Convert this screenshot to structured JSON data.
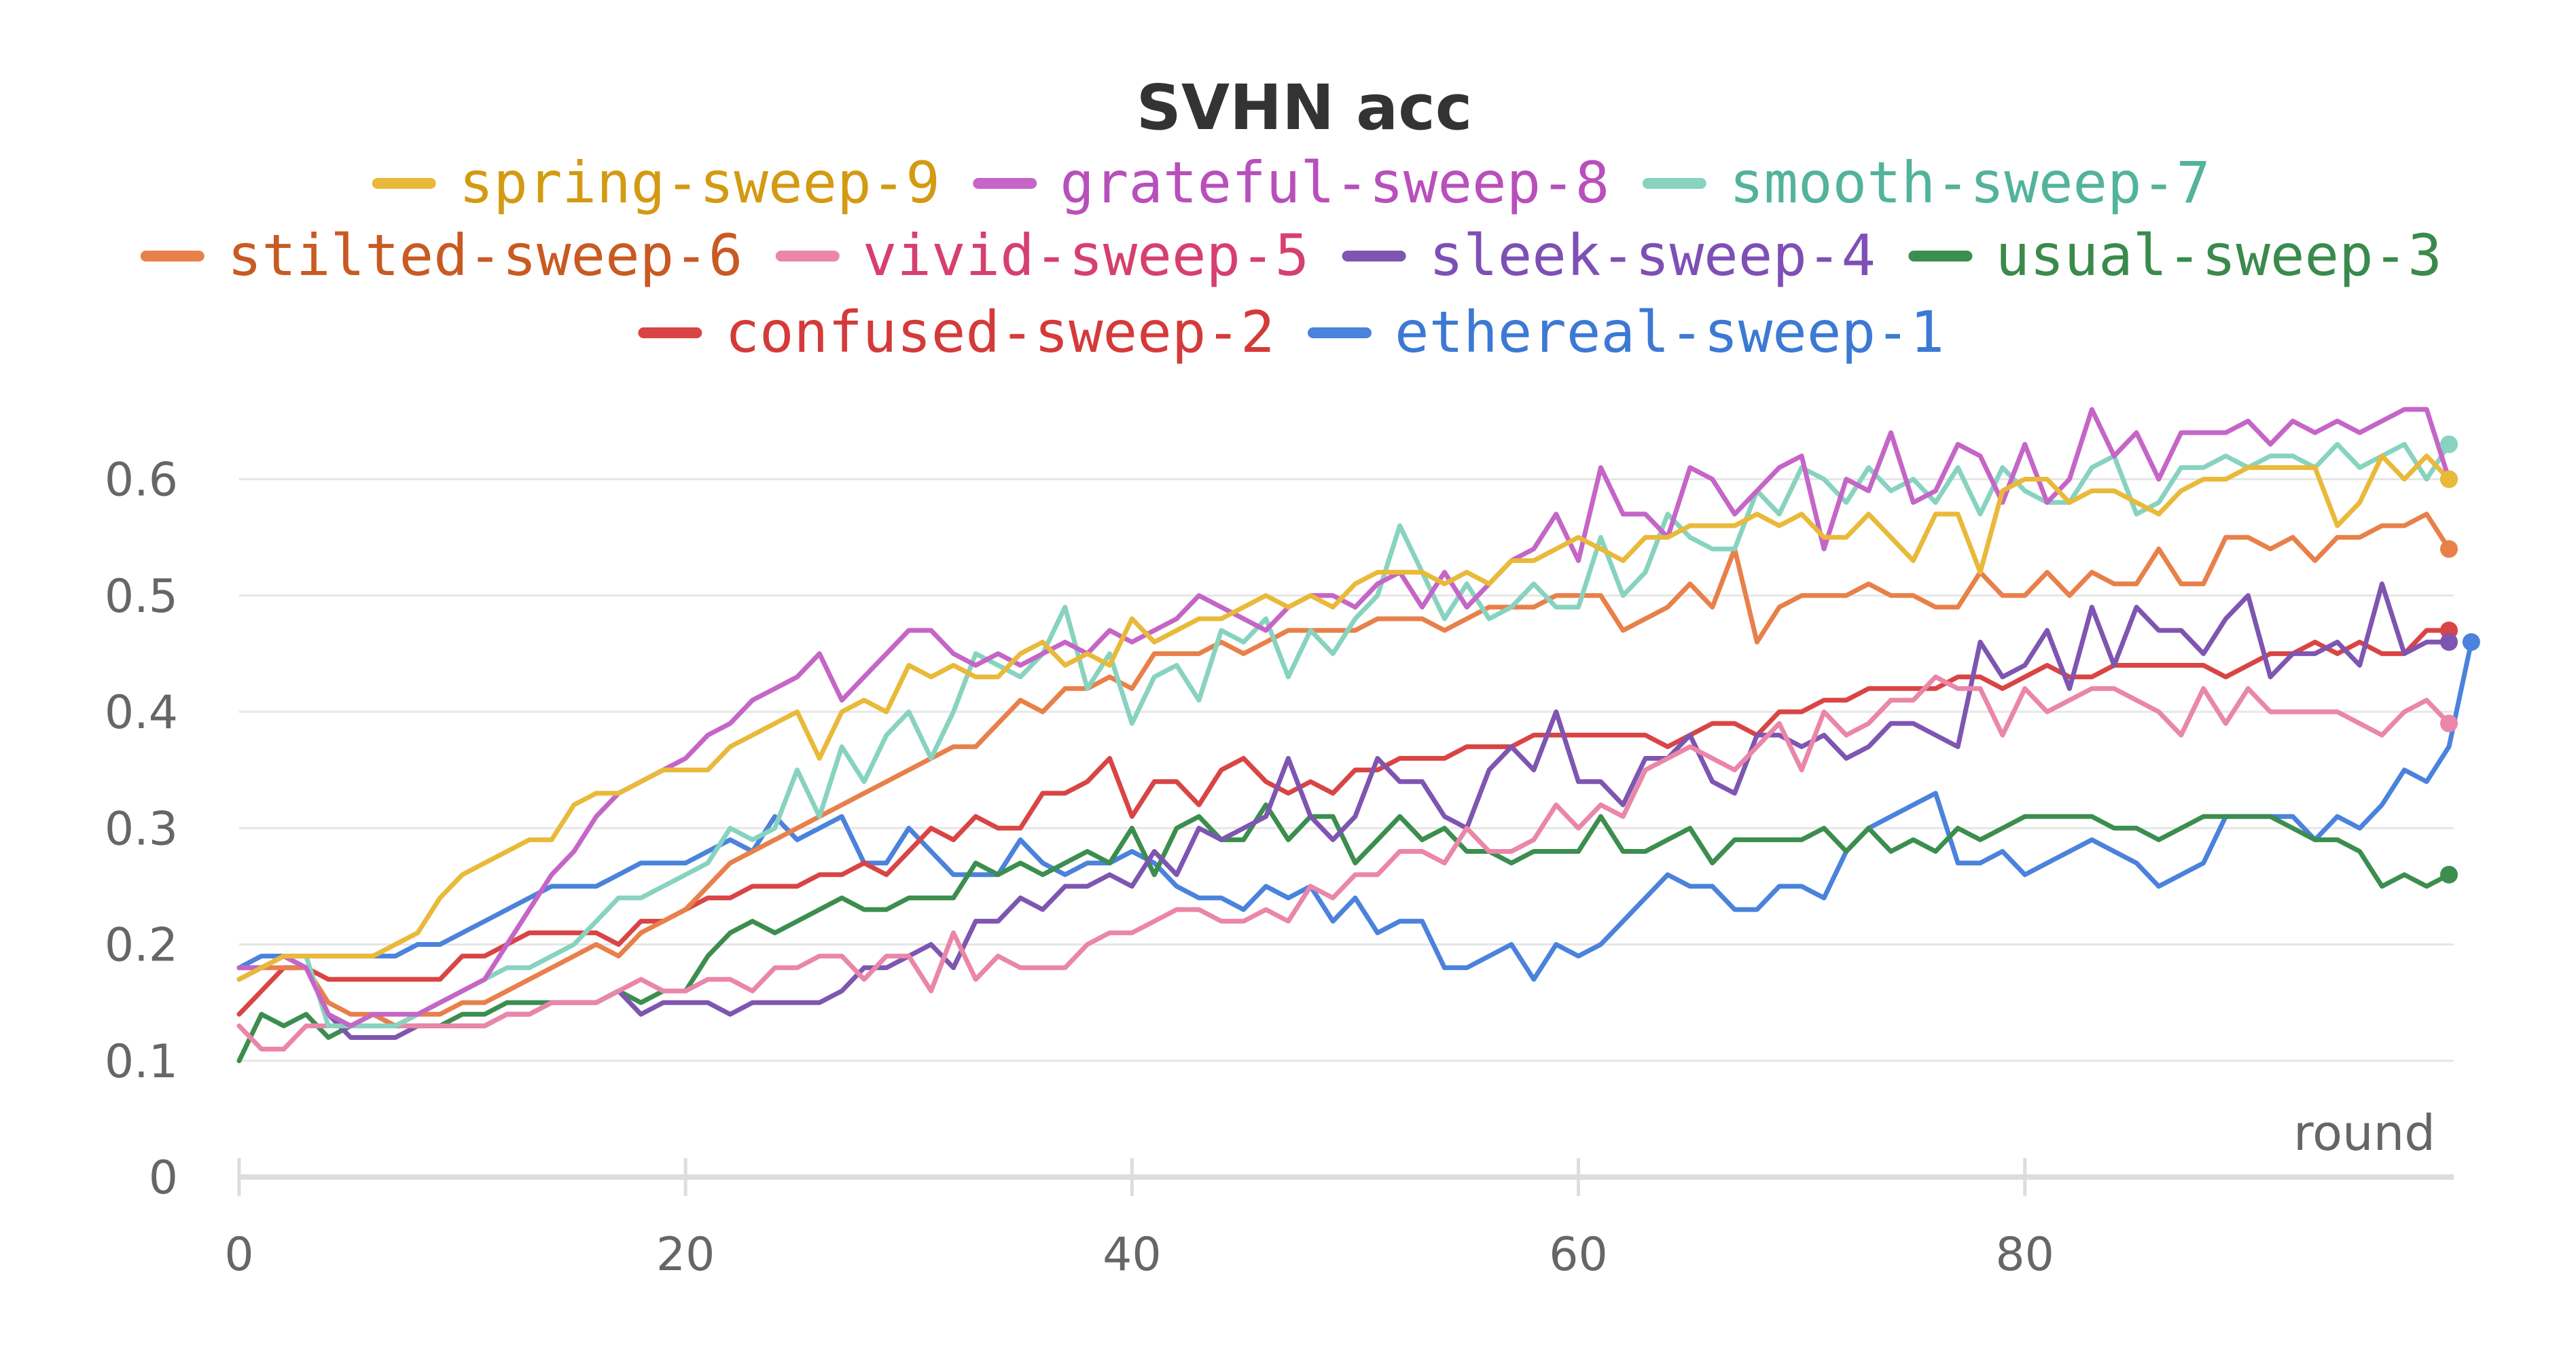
{
  "chart_data": {
    "type": "line",
    "title": "SVHN acc",
    "xlabel": "round",
    "ylabel": "",
    "xlim": [
      0,
      99
    ],
    "ylim": [
      0,
      0.65
    ],
    "xticks": [
      {
        "value": 0,
        "label": "0"
      },
      {
        "value": 20,
        "label": "20"
      },
      {
        "value": 40,
        "label": "40"
      },
      {
        "value": 60,
        "label": "60"
      },
      {
        "value": 80,
        "label": "80"
      }
    ],
    "yticks": [
      {
        "value": 0,
        "label": "0"
      },
      {
        "value": 0.1,
        "label": "0.1"
      },
      {
        "value": 0.2,
        "label": "0.2"
      },
      {
        "value": 0.3,
        "label": "0.3"
      },
      {
        "value": 0.4,
        "label": "0.4"
      },
      {
        "value": 0.5,
        "label": "0.5"
      },
      {
        "value": 0.6,
        "label": "0.6"
      }
    ],
    "grid": true,
    "legend_position": "top",
    "series": [
      {
        "name": "spring-sweep-9",
        "color": "#e9b93a",
        "label_color": "#d39a12",
        "y": [
          0.17,
          0.18,
          0.19,
          0.19,
          0.19,
          0.19,
          0.19,
          0.2,
          0.21,
          0.24,
          0.26,
          0.27,
          0.28,
          0.29,
          0.29,
          0.32,
          0.33,
          0.33,
          0.34,
          0.35,
          0.35,
          0.35,
          0.37,
          0.38,
          0.39,
          0.4,
          0.36,
          0.4,
          0.41,
          0.4,
          0.44,
          0.43,
          0.44,
          0.43,
          0.43,
          0.45,
          0.46,
          0.44,
          0.45,
          0.44,
          0.48,
          0.46,
          0.47,
          0.48,
          0.48,
          0.49,
          0.5,
          0.49,
          0.5,
          0.49,
          0.51,
          0.52,
          0.52,
          0.52,
          0.51,
          0.52,
          0.51,
          0.53,
          0.53,
          0.54,
          0.55,
          0.54,
          0.53,
          0.55,
          0.55,
          0.56,
          0.56,
          0.56,
          0.57,
          0.56,
          0.57,
          0.55,
          0.55,
          0.57,
          0.55,
          0.53,
          0.57,
          0.57,
          0.52,
          0.59,
          0.6,
          0.6,
          0.58,
          0.59,
          0.59,
          0.58,
          0.57,
          0.59,
          0.6,
          0.6,
          0.61,
          0.61,
          0.61,
          0.61,
          0.56,
          0.58,
          0.62,
          0.6,
          0.62,
          0.6
        ]
      },
      {
        "name": "grateful-sweep-8",
        "color": "#c565c7",
        "label_color": "#b84fbb",
        "y": [
          0.18,
          0.18,
          0.19,
          0.18,
          0.14,
          0.13,
          0.14,
          0.14,
          0.14,
          0.15,
          0.16,
          0.17,
          0.2,
          0.23,
          0.26,
          0.28,
          0.31,
          0.33,
          0.34,
          0.35,
          0.36,
          0.38,
          0.39,
          0.41,
          0.42,
          0.43,
          0.45,
          0.41,
          0.43,
          0.45,
          0.47,
          0.47,
          0.45,
          0.44,
          0.45,
          0.44,
          0.45,
          0.46,
          0.45,
          0.47,
          0.46,
          0.47,
          0.48,
          0.5,
          0.49,
          0.48,
          0.47,
          0.49,
          0.5,
          0.5,
          0.49,
          0.51,
          0.52,
          0.49,
          0.52,
          0.49,
          0.51,
          0.53,
          0.54,
          0.57,
          0.53,
          0.61,
          0.57,
          0.57,
          0.55,
          0.61,
          0.6,
          0.57,
          0.59,
          0.61,
          0.62,
          0.54,
          0.6,
          0.59,
          0.64,
          0.58,
          0.59,
          0.63,
          0.62,
          0.58,
          0.63,
          0.58,
          0.6,
          0.66,
          0.62,
          0.64,
          0.6,
          0.64,
          0.64,
          0.64,
          0.65,
          0.63,
          0.65,
          0.64,
          0.65,
          0.64,
          0.65,
          0.66,
          0.66,
          0.6
        ]
      },
      {
        "name": "smooth-sweep-7",
        "color": "#87d3c0",
        "label_color": "#52b39b",
        "y": [
          0.18,
          0.18,
          0.19,
          0.19,
          0.13,
          0.13,
          0.13,
          0.13,
          0.14,
          0.15,
          0.16,
          0.17,
          0.18,
          0.18,
          0.19,
          0.2,
          0.22,
          0.24,
          0.24,
          0.25,
          0.26,
          0.27,
          0.3,
          0.29,
          0.3,
          0.35,
          0.31,
          0.37,
          0.34,
          0.38,
          0.4,
          0.36,
          0.4,
          0.45,
          0.44,
          0.43,
          0.45,
          0.49,
          0.42,
          0.45,
          0.39,
          0.43,
          0.44,
          0.41,
          0.47,
          0.46,
          0.48,
          0.43,
          0.47,
          0.45,
          0.48,
          0.5,
          0.56,
          0.52,
          0.48,
          0.51,
          0.48,
          0.49,
          0.51,
          0.49,
          0.49,
          0.55,
          0.5,
          0.52,
          0.57,
          0.55,
          0.54,
          0.54,
          0.59,
          0.57,
          0.61,
          0.6,
          0.58,
          0.61,
          0.59,
          0.6,
          0.58,
          0.61,
          0.57,
          0.61,
          0.59,
          0.58,
          0.58,
          0.61,
          0.62,
          0.57,
          0.58,
          0.61,
          0.61,
          0.62,
          0.61,
          0.62,
          0.62,
          0.61,
          0.63,
          0.61,
          0.62,
          0.63,
          0.6,
          0.63
        ]
      },
      {
        "name": "stilted-sweep-6",
        "color": "#e8804a",
        "label_color": "#c85a22",
        "y": [
          0.17,
          0.18,
          0.18,
          0.18,
          0.15,
          0.14,
          0.14,
          0.13,
          0.14,
          0.14,
          0.15,
          0.15,
          0.16,
          0.17,
          0.18,
          0.19,
          0.2,
          0.19,
          0.21,
          0.22,
          0.23,
          0.25,
          0.27,
          0.28,
          0.29,
          0.3,
          0.31,
          0.32,
          0.33,
          0.34,
          0.35,
          0.36,
          0.37,
          0.37,
          0.39,
          0.41,
          0.4,
          0.42,
          0.42,
          0.43,
          0.42,
          0.45,
          0.45,
          0.45,
          0.46,
          0.45,
          0.46,
          0.47,
          0.47,
          0.47,
          0.47,
          0.48,
          0.48,
          0.48,
          0.47,
          0.48,
          0.49,
          0.49,
          0.49,
          0.5,
          0.5,
          0.5,
          0.47,
          0.48,
          0.49,
          0.51,
          0.49,
          0.54,
          0.46,
          0.49,
          0.5,
          0.5,
          0.5,
          0.51,
          0.5,
          0.5,
          0.49,
          0.49,
          0.52,
          0.5,
          0.5,
          0.52,
          0.5,
          0.52,
          0.51,
          0.51,
          0.54,
          0.51,
          0.51,
          0.55,
          0.55,
          0.54,
          0.55,
          0.53,
          0.55,
          0.55,
          0.56,
          0.56,
          0.57,
          0.54
        ]
      },
      {
        "name": "vivid-sweep-5",
        "color": "#ea86a8",
        "label_color": "#d6406e",
        "y": [
          0.13,
          0.11,
          0.11,
          0.13,
          0.13,
          0.13,
          0.13,
          0.13,
          0.13,
          0.13,
          0.13,
          0.13,
          0.14,
          0.14,
          0.15,
          0.15,
          0.15,
          0.16,
          0.17,
          0.16,
          0.16,
          0.17,
          0.17,
          0.16,
          0.18,
          0.18,
          0.19,
          0.19,
          0.17,
          0.19,
          0.19,
          0.16,
          0.21,
          0.17,
          0.19,
          0.18,
          0.18,
          0.18,
          0.2,
          0.21,
          0.21,
          0.22,
          0.23,
          0.23,
          0.22,
          0.22,
          0.23,
          0.22,
          0.25,
          0.24,
          0.26,
          0.26,
          0.28,
          0.28,
          0.27,
          0.3,
          0.28,
          0.28,
          0.29,
          0.32,
          0.3,
          0.32,
          0.31,
          0.35,
          0.36,
          0.37,
          0.36,
          0.35,
          0.37,
          0.39,
          0.35,
          0.4,
          0.38,
          0.39,
          0.41,
          0.41,
          0.43,
          0.42,
          0.42,
          0.38,
          0.42,
          0.4,
          0.41,
          0.42,
          0.42,
          0.41,
          0.4,
          0.38,
          0.42,
          0.39,
          0.42,
          0.4,
          0.4,
          0.4,
          0.4,
          0.39,
          0.38,
          0.4,
          0.41,
          0.39
        ]
      },
      {
        "name": "sleek-sweep-4",
        "color": "#7e55b0",
        "label_color": "#7e4fb5",
        "y": [
          0.18,
          0.18,
          0.19,
          0.18,
          0.14,
          0.12,
          0.12,
          0.12,
          0.13,
          0.13,
          0.13,
          0.13,
          0.14,
          0.14,
          0.15,
          0.15,
          0.15,
          0.16,
          0.14,
          0.15,
          0.15,
          0.15,
          0.14,
          0.15,
          0.15,
          0.15,
          0.15,
          0.16,
          0.18,
          0.18,
          0.19,
          0.2,
          0.18,
          0.22,
          0.22,
          0.24,
          0.23,
          0.25,
          0.25,
          0.26,
          0.25,
          0.28,
          0.26,
          0.3,
          0.29,
          0.3,
          0.31,
          0.36,
          0.31,
          0.29,
          0.31,
          0.36,
          0.34,
          0.34,
          0.31,
          0.3,
          0.35,
          0.37,
          0.35,
          0.4,
          0.34,
          0.34,
          0.32,
          0.36,
          0.36,
          0.38,
          0.34,
          0.33,
          0.38,
          0.38,
          0.37,
          0.38,
          0.36,
          0.37,
          0.39,
          0.39,
          0.38,
          0.37,
          0.46,
          0.43,
          0.44,
          0.47,
          0.42,
          0.49,
          0.44,
          0.49,
          0.47,
          0.47,
          0.45,
          0.48,
          0.5,
          0.43,
          0.45,
          0.45,
          0.46,
          0.44,
          0.51,
          0.45,
          0.46,
          0.46
        ]
      },
      {
        "name": "usual-sweep-3",
        "color": "#3b8e4e",
        "label_color": "#3a8a4c",
        "y": [
          0.1,
          0.14,
          0.13,
          0.14,
          0.12,
          0.13,
          0.14,
          0.13,
          0.13,
          0.13,
          0.14,
          0.14,
          0.15,
          0.15,
          0.15,
          0.15,
          0.15,
          0.16,
          0.15,
          0.16,
          0.16,
          0.19,
          0.21,
          0.22,
          0.21,
          0.22,
          0.23,
          0.24,
          0.23,
          0.23,
          0.24,
          0.24,
          0.24,
          0.27,
          0.26,
          0.27,
          0.26,
          0.27,
          0.28,
          0.27,
          0.3,
          0.26,
          0.3,
          0.31,
          0.29,
          0.29,
          0.32,
          0.29,
          0.31,
          0.31,
          0.27,
          0.29,
          0.31,
          0.29,
          0.3,
          0.28,
          0.28,
          0.27,
          0.28,
          0.28,
          0.28,
          0.31,
          0.28,
          0.28,
          0.29,
          0.3,
          0.27,
          0.29,
          0.29,
          0.29,
          0.29,
          0.3,
          0.28,
          0.3,
          0.28,
          0.29,
          0.28,
          0.3,
          0.29,
          0.3,
          0.31,
          0.31,
          0.31,
          0.31,
          0.3,
          0.3,
          0.29,
          0.3,
          0.31,
          0.31,
          0.31,
          0.31,
          0.3,
          0.29,
          0.29,
          0.28,
          0.25,
          0.26,
          0.25,
          0.26
        ]
      },
      {
        "name": "confused-sweep-2",
        "color": "#d94444",
        "label_color": "#d43a3a",
        "y": [
          0.14,
          0.16,
          0.18,
          0.18,
          0.17,
          0.17,
          0.17,
          0.17,
          0.17,
          0.17,
          0.19,
          0.19,
          0.2,
          0.21,
          0.21,
          0.21,
          0.21,
          0.2,
          0.22,
          0.22,
          0.23,
          0.24,
          0.24,
          0.25,
          0.25,
          0.25,
          0.26,
          0.26,
          0.27,
          0.26,
          0.28,
          0.3,
          0.29,
          0.31,
          0.3,
          0.3,
          0.33,
          0.33,
          0.34,
          0.36,
          0.31,
          0.34,
          0.34,
          0.32,
          0.35,
          0.36,
          0.34,
          0.33,
          0.34,
          0.33,
          0.35,
          0.35,
          0.36,
          0.36,
          0.36,
          0.37,
          0.37,
          0.37,
          0.38,
          0.38,
          0.38,
          0.38,
          0.38,
          0.38,
          0.37,
          0.38,
          0.39,
          0.39,
          0.38,
          0.4,
          0.4,
          0.41,
          0.41,
          0.42,
          0.42,
          0.42,
          0.42,
          0.43,
          0.43,
          0.42,
          0.43,
          0.44,
          0.43,
          0.43,
          0.44,
          0.44,
          0.44,
          0.44,
          0.44,
          0.43,
          0.44,
          0.45,
          0.45,
          0.46,
          0.45,
          0.46,
          0.45,
          0.45,
          0.47,
          0.47
        ]
      },
      {
        "name": "ethereal-sweep-1",
        "color": "#4a82dc",
        "label_color": "#3c79d4",
        "y": [
          0.18,
          0.19,
          0.19,
          0.19,
          0.19,
          0.19,
          0.19,
          0.19,
          0.2,
          0.2,
          0.21,
          0.22,
          0.23,
          0.24,
          0.25,
          0.25,
          0.25,
          0.26,
          0.27,
          0.27,
          0.27,
          0.28,
          0.29,
          0.28,
          0.31,
          0.29,
          0.3,
          0.31,
          0.27,
          0.27,
          0.3,
          0.28,
          0.26,
          0.26,
          0.26,
          0.29,
          0.27,
          0.26,
          0.27,
          0.27,
          0.28,
          0.27,
          0.25,
          0.24,
          0.24,
          0.23,
          0.25,
          0.24,
          0.25,
          0.22,
          0.24,
          0.21,
          0.22,
          0.22,
          0.18,
          0.18,
          0.19,
          0.2,
          0.17,
          0.2,
          0.19,
          0.2,
          0.22,
          0.24,
          0.26,
          0.25,
          0.25,
          0.23,
          0.23,
          0.25,
          0.25,
          0.24,
          0.28,
          0.3,
          0.31,
          0.32,
          0.33,
          0.27,
          0.27,
          0.28,
          0.26,
          0.27,
          0.28,
          0.29,
          0.28,
          0.27,
          0.25,
          0.26,
          0.27,
          0.31,
          0.31,
          0.31,
          0.31,
          0.29,
          0.31,
          0.3,
          0.32,
          0.35,
          0.34,
          0.37,
          0.46
        ]
      }
    ]
  }
}
